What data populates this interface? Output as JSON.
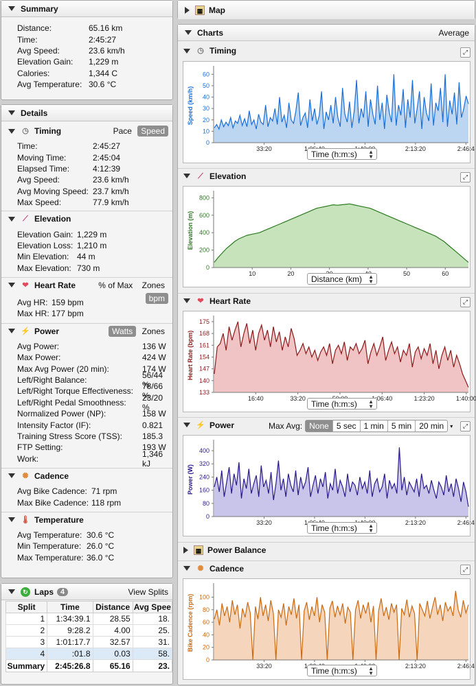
{
  "summary": {
    "title": "Summary",
    "rows": [
      {
        "k": "Distance:",
        "v": "65.16 km"
      },
      {
        "k": "Time:",
        "v": "2:45:27"
      },
      {
        "k": "Avg Speed:",
        "v": "23.6 km/h"
      },
      {
        "k": "Elevation Gain:",
        "v": "1,229 m"
      },
      {
        "k": "Calories:",
        "v": "1,344 C"
      },
      {
        "k": "Avg Temperature:",
        "v": "30.6 °C"
      }
    ]
  },
  "details": {
    "title": "Details",
    "timing": {
      "title": "Timing",
      "pace": "Pace",
      "speed": "Speed",
      "rows": [
        {
          "k": "Time:",
          "v": "2:45:27"
        },
        {
          "k": "Moving Time:",
          "v": "2:45:04"
        },
        {
          "k": "Elapsed Time:",
          "v": "4:12:39"
        },
        {
          "k": "Avg Speed:",
          "v": "23.6 km/h"
        },
        {
          "k": "Avg Moving Speed:",
          "v": "23.7 km/h"
        },
        {
          "k": "Max Speed:",
          "v": "77.9 km/h"
        }
      ]
    },
    "elevation": {
      "title": "Elevation",
      "rows": [
        {
          "k": "Elevation Gain:",
          "v": "1,229 m"
        },
        {
          "k": "Elevation Loss:",
          "v": "1,210 m"
        },
        {
          "k": "Min Elevation:",
          "v": "44 m"
        },
        {
          "k": "Max Elevation:",
          "v": "730 m"
        }
      ]
    },
    "heartrate": {
      "title": "Heart Rate",
      "pct": "% of Max",
      "zones": "Zones",
      "bpm": "bpm",
      "rows": [
        {
          "k": "Avg HR:",
          "v": "159 bpm"
        },
        {
          "k": "Max HR:",
          "v": "177 bpm"
        }
      ]
    },
    "power": {
      "title": "Power",
      "watts": "Watts",
      "zones": "Zones",
      "rows": [
        {
          "k": "Avg Power:",
          "v": "136 W"
        },
        {
          "k": "Max Power:",
          "v": "424 W"
        },
        {
          "k": "Max Avg Power (20 min):",
          "v": "174 W"
        },
        {
          "k": "Left/Right Balance:",
          "v": "56/44 %"
        },
        {
          "k": "Left/Right Torque Effectiveness:",
          "v": "78/66 %"
        },
        {
          "k": "Left/Right Pedal Smoothness:",
          "v": "23/20 %"
        },
        {
          "k": "Normalized Power (NP):",
          "v": "158 W"
        },
        {
          "k": "Intensity Factor (IF):",
          "v": "0.821"
        },
        {
          "k": "Training Stress Score (TSS):",
          "v": "185.3"
        },
        {
          "k": "FTP Setting:",
          "v": "193 W"
        },
        {
          "k": "Work:",
          "v": "1,346 kJ"
        }
      ]
    },
    "cadence": {
      "title": "Cadence",
      "rows": [
        {
          "k": "Avg Bike Cadence:",
          "v": "71 rpm"
        },
        {
          "k": "Max Bike Cadence:",
          "v": "118 rpm"
        }
      ]
    },
    "temperature": {
      "title": "Temperature",
      "rows": [
        {
          "k": "Avg Temperature:",
          "v": "30.6 °C"
        },
        {
          "k": "Min Temperature:",
          "v": "26.0 °C"
        },
        {
          "k": "Max Temperature:",
          "v": "36.0 °C"
        }
      ]
    }
  },
  "laps": {
    "title": "Laps",
    "count": "4",
    "view": "View Splits",
    "headers": [
      "Split",
      "Time",
      "Distance",
      "Avg Spee"
    ],
    "rows": [
      [
        "1",
        "1:34:39.1",
        "28.55",
        "18."
      ],
      [
        "2",
        "9:28.2",
        "4.00",
        "25."
      ],
      [
        "3",
        "1:01:17.7",
        "32.57",
        "31."
      ],
      [
        "4",
        ":01.8",
        "0.03",
        "58."
      ]
    ],
    "total": [
      "Summary",
      "2:45:26.8",
      "65.16",
      "23."
    ]
  },
  "map": {
    "title": "Map"
  },
  "charts": {
    "title": "Charts",
    "average": "Average",
    "timing": {
      "title": "Timing",
      "axis": "Time (h:m:s)"
    },
    "elevation": {
      "title": "Elevation",
      "axis": "Distance (km)"
    },
    "heartrate": {
      "title": "Heart Rate",
      "axis": "Time (h:m:s)"
    },
    "power": {
      "title": "Power",
      "axis": "Time (h:m:s)",
      "maxavg": "Max Avg:",
      "opts": [
        "None",
        "5 sec",
        "1 min",
        "5 min",
        "20 min"
      ]
    },
    "balance": {
      "title": "Power Balance"
    },
    "cadence": {
      "title": "Cadence",
      "axis": "Time (h:m:s)"
    }
  },
  "chart_data": [
    {
      "type": "line",
      "ylabel": "Speed (km/h)",
      "xlabel": "Time (h:m:s)",
      "yticks": [
        0,
        10,
        20,
        30,
        40,
        50,
        60
      ],
      "ylim": [
        0,
        65
      ],
      "xticks": [
        "33:20",
        "1:06:40",
        "1:40:00",
        "2:13:20",
        "2:46:4"
      ],
      "color": "#1a6fd6",
      "fill": "#bcd6f2",
      "values": [
        13,
        16,
        12,
        20,
        14,
        18,
        15,
        22,
        13,
        19,
        17,
        24,
        15,
        21,
        14,
        28,
        16,
        20,
        12,
        25,
        18,
        16,
        33,
        14,
        22,
        19,
        30,
        16,
        40,
        18,
        24,
        13,
        35,
        20,
        17,
        28,
        44,
        15,
        22,
        26,
        13,
        38,
        19,
        30,
        16,
        24,
        45,
        12,
        27,
        20,
        33,
        17,
        40,
        22,
        14,
        48,
        25,
        18,
        36,
        13,
        28,
        55,
        17,
        30,
        22,
        45,
        14,
        38,
        25,
        16,
        50,
        20,
        35,
        12,
        42,
        27,
        18,
        60,
        15,
        33,
        24,
        47,
        13,
        38,
        22,
        55,
        17,
        30,
        45,
        12,
        40,
        26,
        19,
        52,
        15,
        35,
        28,
        48,
        18,
        60,
        14,
        37,
        25,
        44,
        16,
        53,
        22,
        30,
        41,
        34
      ]
    },
    {
      "type": "area",
      "ylabel": "Elevation (m)",
      "xlabel": "Distance (km)",
      "yticks": [
        0,
        200,
        400,
        600,
        800
      ],
      "ylim": [
        0,
        850
      ],
      "xticks": [
        "10",
        "20",
        "30",
        "40",
        "50",
        "60"
      ],
      "color": "#2b7a1f",
      "fill": "#c6e3bc",
      "values": [
        60,
        120,
        170,
        220,
        260,
        300,
        330,
        350,
        370,
        380,
        390,
        400,
        420,
        440,
        460,
        480,
        500,
        520,
        540,
        560,
        580,
        600,
        620,
        640,
        660,
        680,
        690,
        700,
        710,
        720,
        715,
        720,
        725,
        730,
        720,
        710,
        700,
        690,
        680,
        660,
        640,
        620,
        600,
        580,
        560,
        540,
        520,
        500,
        480,
        460,
        440,
        420,
        400,
        380,
        360,
        330,
        300,
        260,
        220,
        180,
        140,
        100,
        60
      ]
    },
    {
      "type": "line",
      "ylabel": "Heart Rate (bpm)",
      "xlabel": "Time (h:m:s)",
      "yticks": [
        133,
        140,
        147,
        154,
        161,
        168,
        175
      ],
      "ylim": [
        133,
        177
      ],
      "xticks": [
        "16:40",
        "33:20",
        "50:00",
        "1:06:40",
        "1:23:20",
        "1:40:00"
      ],
      "color": "#8b1a1a",
      "fill": "#f0c4c4",
      "values": [
        144,
        160,
        162,
        168,
        158,
        172,
        164,
        170,
        175,
        160,
        168,
        174,
        162,
        170,
        158,
        168,
        173,
        164,
        170,
        160,
        172,
        163,
        169,
        158,
        166,
        160,
        171,
        165,
        155,
        158,
        162,
        156,
        160,
        154,
        158,
        152,
        157,
        160,
        155,
        162,
        150,
        158,
        161,
        156,
        163,
        152,
        160,
        158,
        162,
        156,
        159,
        164,
        150,
        157,
        162,
        155,
        160,
        166,
        152,
        158,
        163,
        156,
        160,
        151,
        158,
        155,
        162,
        148,
        157,
        160,
        153,
        159,
        155,
        162,
        150,
        158,
        147,
        155,
        160,
        152,
        158,
        148,
        155,
        150,
        144,
        140,
        136
      ]
    },
    {
      "type": "line",
      "ylabel": "Power (W)",
      "xlabel": "Time (h:m:s)",
      "yticks": [
        0,
        80,
        160,
        240,
        320,
        400
      ],
      "ylim": [
        0,
        450
      ],
      "xticks": [
        "33:20",
        "1:06:40",
        "1:40:00",
        "2:13:20",
        "2:46:4"
      ],
      "color": "#2a1a8b",
      "fill": "#c9c4ea",
      "values": [
        180,
        240,
        150,
        280,
        120,
        210,
        300,
        140,
        260,
        190,
        330,
        110,
        230,
        170,
        290,
        140,
        200,
        250,
        120,
        310,
        180,
        220,
        140,
        270,
        100,
        200,
        340,
        160,
        230,
        120,
        260,
        190,
        150,
        280,
        130,
        240,
        170,
        210,
        300,
        120,
        190,
        250,
        140,
        230,
        180,
        270,
        110,
        200,
        160,
        290,
        140,
        220,
        180,
        120,
        260,
        150,
        210,
        190,
        130,
        240,
        170,
        210,
        140,
        280,
        120,
        200,
        230,
        150,
        180,
        260,
        110,
        220,
        170,
        200,
        140,
        420,
        160,
        240,
        130,
        210,
        180,
        150,
        230,
        120,
        260,
        170,
        190,
        140,
        220,
        160,
        110,
        210,
        180,
        130,
        250,
        150,
        200,
        120,
        230,
        170,
        90,
        210,
        150,
        60
      ]
    },
    {
      "type": "line",
      "ylabel": "Bike Cadence (rpm)",
      "xlabel": "Time (h:m:s)",
      "yticks": [
        0,
        20,
        40,
        60,
        80,
        100
      ],
      "ylim": [
        0,
        118
      ],
      "xticks": [
        "33:20",
        "1:06:40",
        "1:40:00",
        "2:13:20",
        "2:46:4"
      ],
      "color": "#c96a12",
      "fill": "#f5d6bc",
      "values": [
        65,
        80,
        55,
        90,
        70,
        85,
        60,
        95,
        72,
        88,
        50,
        82,
        68,
        92,
        75,
        0,
        85,
        65,
        100,
        70,
        88,
        62,
        95,
        74,
        0,
        80,
        68,
        90,
        55,
        85,
        72,
        98,
        66,
        88,
        0,
        78,
        92,
        64,
        85,
        70,
        100,
        60,
        88,
        76,
        0,
        82,
        94,
        68,
        86,
        72,
        90,
        58,
        84,
        76,
        0,
        80,
        95,
        66,
        88,
        74,
        92,
        60,
        86,
        0,
        78,
        98,
        70,
        84,
        64,
        90,
        76,
        88,
        0,
        82,
        72,
        96,
        68,
        86,
        74,
        0,
        90,
        80,
        70,
        94,
        66,
        84,
        100,
        72,
        88,
        62,
        92,
        78,
        85,
        70,
        110,
        80,
        68,
        95,
        75,
        88
      ]
    }
  ]
}
